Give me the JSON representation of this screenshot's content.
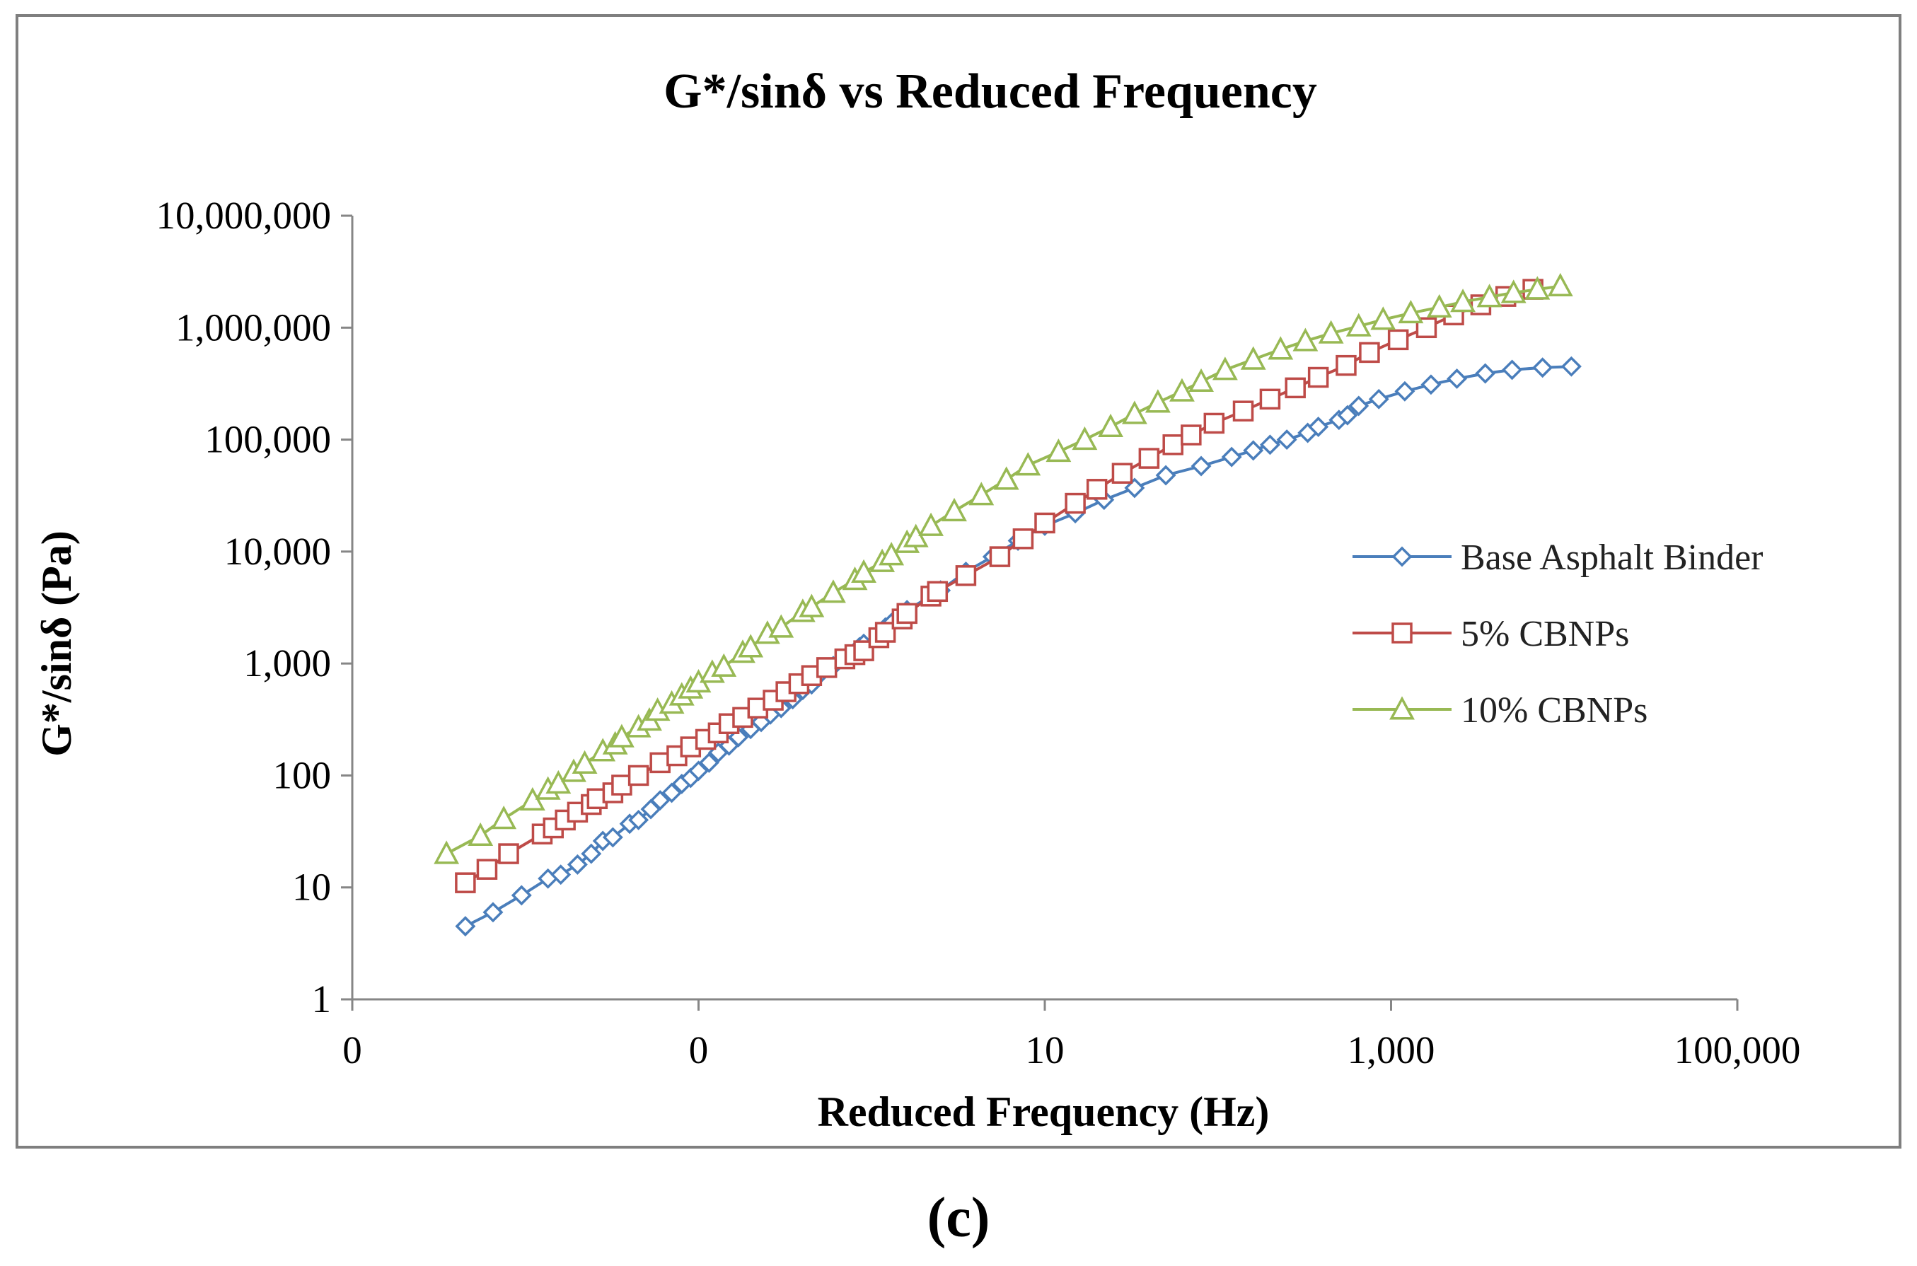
{
  "panel_label": "(c)",
  "colors": {
    "Base Asphalt Binder": "#4a7ebb",
    "5% CBNPs": "#be4b48",
    "10% CBNPs": "#98b954",
    "frame": "#7f7f7f",
    "axis": "#868686"
  },
  "chart_data": {
    "type": "line",
    "title": "G*/sinδ vs Reduced Frequency",
    "xlabel": "Reduced Frequency (Hz)",
    "ylabel": "G*/sinδ (Pa)",
    "x_scale": "log",
    "y_scale": "log",
    "xlim": [
      0.001,
      100000
    ],
    "ylim": [
      1,
      10000000
    ],
    "x_ticks": [
      0.001,
      0.1,
      10,
      1000,
      100000
    ],
    "x_tick_labels": [
      "0",
      "0",
      "10",
      "1,000",
      "100,000"
    ],
    "y_ticks": [
      1,
      10,
      100,
      1000,
      10000,
      100000,
      1000000,
      10000000
    ],
    "y_tick_labels": [
      "1",
      "10",
      "100",
      "1,000",
      "10,000",
      "100,000",
      "1,000,000",
      "10,000,000"
    ],
    "legend_position": "right",
    "series": [
      {
        "name": "Base Asphalt Binder",
        "marker": "diamond",
        "x": [
          0.0045,
          0.0065,
          0.0095,
          0.0135,
          0.016,
          0.02,
          0.024,
          0.028,
          0.032,
          0.04,
          0.045,
          0.053,
          0.06,
          0.07,
          0.08,
          0.09,
          0.1,
          0.115,
          0.13,
          0.15,
          0.17,
          0.2,
          0.23,
          0.26,
          0.3,
          0.35,
          0.4,
          0.45,
          0.5,
          0.6,
          0.85,
          0.9,
          1.2,
          1.3,
          1.6,
          2.5,
          3.5,
          5.0,
          7.0,
          10.0,
          15.0,
          22.0,
          33.0,
          50.0,
          80.0,
          120.0,
          160.0,
          200.0,
          250.0,
          330.0,
          380.0,
          500.0,
          560.0,
          650.0,
          850.0,
          1200.0,
          1700.0,
          2400.0,
          3500.0,
          5000.0,
          7500.0,
          11000.0
        ],
        "y": [
          4.5,
          6,
          8.5,
          12,
          13,
          16,
          20,
          26,
          28,
          37,
          40,
          50,
          60,
          70,
          84,
          95,
          110,
          130,
          160,
          185,
          220,
          260,
          300,
          350,
          400,
          480,
          580,
          650,
          800,
          950,
          1400,
          1500,
          2100,
          2300,
          3000,
          4500,
          6600,
          9000,
          12500,
          17000,
          22000,
          29000,
          37000,
          48000,
          58000,
          70000,
          80000,
          90000,
          100000,
          115000,
          130000,
          150000,
          165000,
          200000,
          230000,
          270000,
          310000,
          350000,
          390000,
          420000,
          440000,
          450000
        ]
      },
      {
        "name": "5% CBNPs",
        "marker": "square",
        "x": [
          0.0045,
          0.006,
          0.008,
          0.0125,
          0.0145,
          0.017,
          0.02,
          0.024,
          0.026,
          0.032,
          0.036,
          0.045,
          0.06,
          0.075,
          0.09,
          0.11,
          0.13,
          0.15,
          0.18,
          0.22,
          0.27,
          0.32,
          0.38,
          0.45,
          0.55,
          0.7,
          0.8,
          0.9,
          1.1,
          1.2,
          1.5,
          1.6,
          2.2,
          2.4,
          3.5,
          5.5,
          7.5,
          10.0,
          15.0,
          20.0,
          28.0,
          40.0,
          55.0,
          70.0,
          95.0,
          140.0,
          200.0,
          280.0,
          380.0,
          550.0,
          750.0,
          1100.0,
          1600.0,
          2300.0,
          3300.0,
          4600.0,
          6600.0
        ],
        "y": [
          11,
          14.5,
          20,
          30,
          34,
          40,
          47,
          55,
          62,
          70,
          82,
          100,
          130,
          150,
          180,
          210,
          240,
          290,
          330,
          400,
          470,
          560,
          660,
          780,
          920,
          1100,
          1200,
          1300,
          1700,
          1900,
          2500,
          2800,
          4000,
          4400,
          6100,
          9000,
          13000,
          18000,
          27000,
          36000,
          50000,
          68000,
          90000,
          110000,
          140000,
          180000,
          230000,
          290000,
          360000,
          460000,
          600000,
          780000,
          1000000,
          1300000,
          1600000,
          1900000,
          2200000
        ]
      },
      {
        "name": "10% CBNPs",
        "marker": "triangle",
        "x": [
          0.0035,
          0.0055,
          0.0075,
          0.011,
          0.0135,
          0.0155,
          0.019,
          0.022,
          0.028,
          0.033,
          0.036,
          0.045,
          0.052,
          0.058,
          0.07,
          0.08,
          0.09,
          0.1,
          0.12,
          0.14,
          0.18,
          0.2,
          0.25,
          0.3,
          0.4,
          0.45,
          0.6,
          0.8,
          0.9,
          1.15,
          1.3,
          1.6,
          1.8,
          2.2,
          3.0,
          4.3,
          6.0,
          8.0,
          12.0,
          17.0,
          24.0,
          33.0,
          45.0,
          62.0,
          80.0,
          110.0,
          160.0,
          230.0,
          320.0,
          450.0,
          650.0,
          900.0,
          1300.0,
          1900.0,
          2600.0,
          3700.0,
          5100.0,
          7000.0,
          9500.0
        ],
        "y": [
          20,
          29,
          41,
          60,
          75,
          85,
          108,
          128,
          165,
          190,
          220,
          270,
          310,
          380,
          440,
          520,
          600,
          680,
          830,
          940,
          1250,
          1400,
          1850,
          2100,
          2900,
          3200,
          4300,
          5600,
          6500,
          8100,
          9300,
          12000,
          13500,
          17000,
          23000,
          32000,
          44000,
          59000,
          78000,
          100000,
          130000,
          170000,
          215000,
          270000,
          330000,
          420000,
          520000,
          640000,
          760000,
          890000,
          1030000,
          1180000,
          1350000,
          1520000,
          1700000,
          1880000,
          2050000,
          2200000,
          2350000
        ]
      }
    ]
  }
}
